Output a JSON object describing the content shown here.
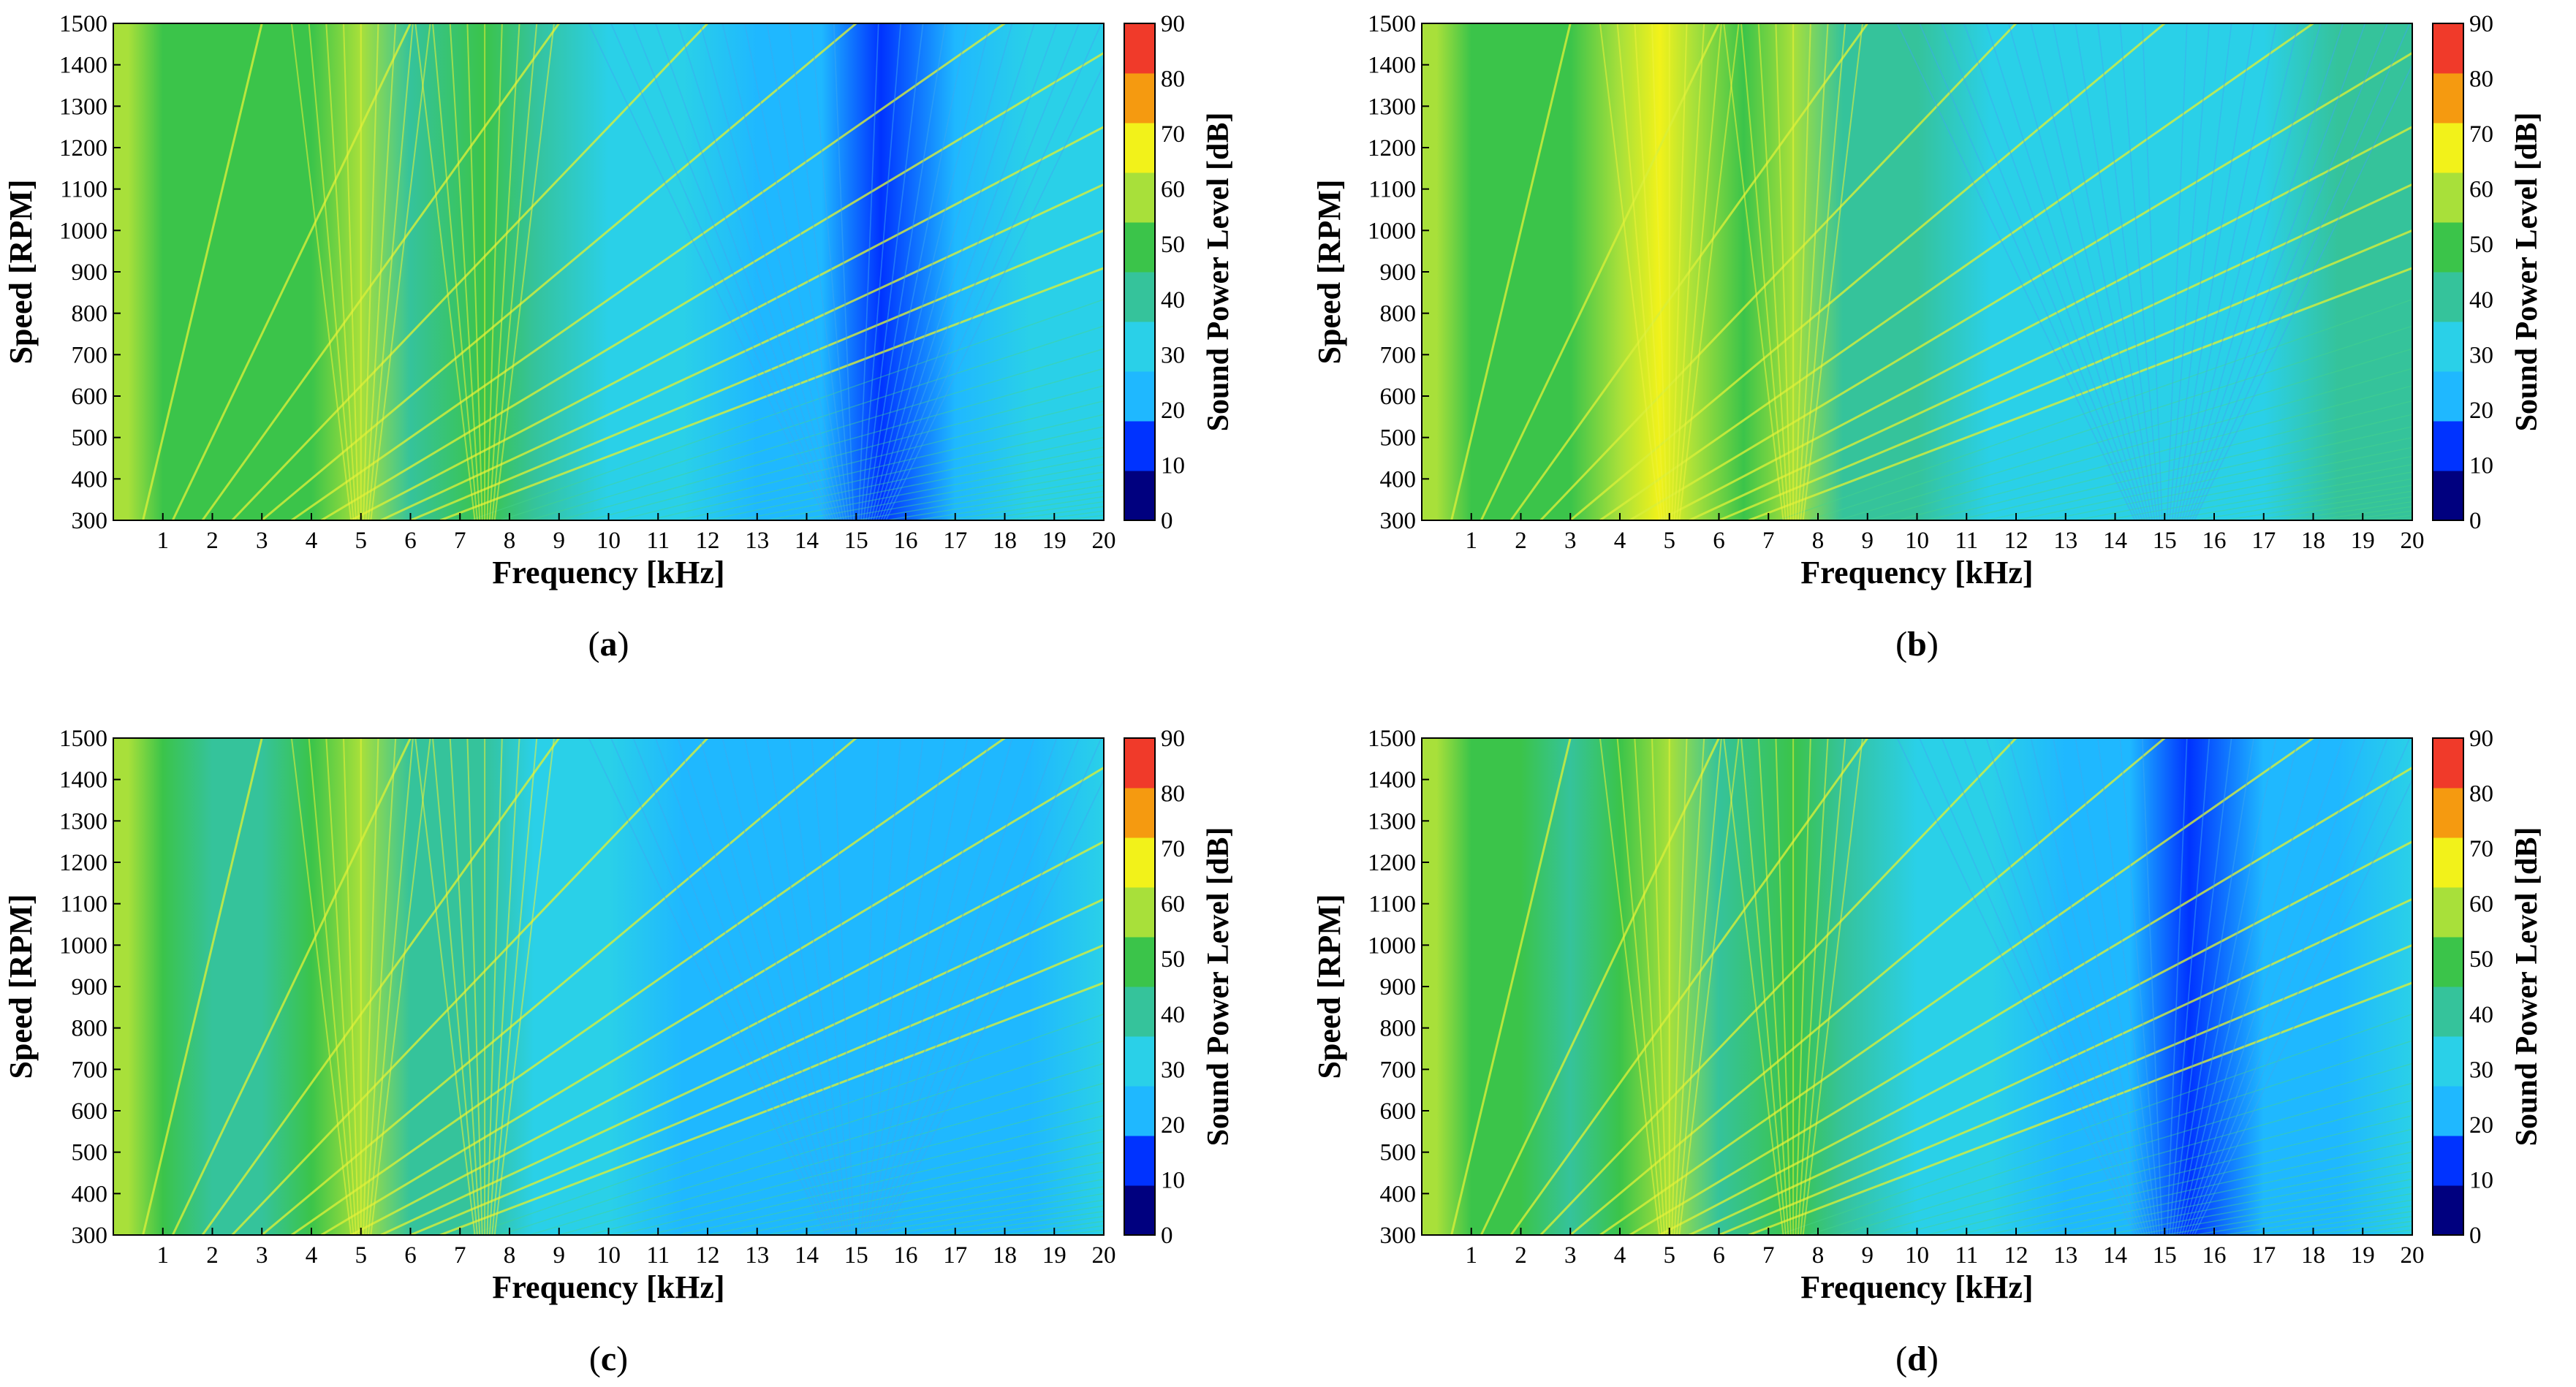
{
  "chart_data": [
    {
      "type": "heatmap",
      "panel_label_prefix": "(",
      "panel_letter": "a",
      "panel_label_suffix": ")",
      "xlabel": "Frequency [kHz]",
      "ylabel": "Speed [RPM]",
      "colorbar_label": "Sound Power Level [dB]",
      "xlim": [
        0,
        20
      ],
      "ylim": [
        300,
        1500
      ],
      "zlim": [
        0,
        90
      ],
      "x_ticks": [
        1,
        2,
        3,
        4,
        5,
        6,
        7,
        8,
        9,
        10,
        11,
        12,
        13,
        14,
        15,
        16,
        17,
        18,
        19,
        20
      ],
      "y_ticks": [
        300,
        400,
        500,
        600,
        700,
        800,
        900,
        1000,
        1100,
        1200,
        1300,
        1400,
        1500
      ],
      "colorbar_ticks": [
        0,
        10,
        20,
        30,
        40,
        50,
        60,
        70,
        80,
        90
      ],
      "band_profile_db": [
        {
          "freq_khz": 0.3,
          "level_db": 60
        },
        {
          "freq_khz": 1.0,
          "level_db": 50
        },
        {
          "freq_khz": 2.0,
          "level_db": 47
        },
        {
          "freq_khz": 3.0,
          "level_db": 45
        },
        {
          "freq_khz": 4.0,
          "level_db": 50
        },
        {
          "freq_khz": 5.0,
          "level_db": 60
        },
        {
          "freq_khz": 6.0,
          "level_db": 42
        },
        {
          "freq_khz": 7.5,
          "level_db": 48
        },
        {
          "freq_khz": 8.5,
          "level_db": 36
        },
        {
          "freq_khz": 10.0,
          "level_db": 32
        },
        {
          "freq_khz": 11.5,
          "level_db": 30
        },
        {
          "freq_khz": 13.0,
          "level_db": 22
        },
        {
          "freq_khz": 14.3,
          "level_db": 18
        },
        {
          "freq_khz": 15.5,
          "level_db": 12
        },
        {
          "freq_khz": 17.0,
          "level_db": 20
        },
        {
          "freq_khz": 18.5,
          "level_db": 30
        },
        {
          "freq_khz": 20.0,
          "level_db": 32
        }
      ]
    },
    {
      "type": "heatmap",
      "panel_label_prefix": "(",
      "panel_letter": "b",
      "panel_label_suffix": ")",
      "xlabel": "Frequency [kHz]",
      "ylabel": "Speed [RPM]",
      "colorbar_label": "Sound Power Level [dB]",
      "xlim": [
        0,
        20
      ],
      "ylim": [
        300,
        1500
      ],
      "zlim": [
        0,
        90
      ],
      "x_ticks": [
        1,
        2,
        3,
        4,
        5,
        6,
        7,
        8,
        9,
        10,
        11,
        12,
        13,
        14,
        15,
        16,
        17,
        18,
        19,
        20
      ],
      "y_ticks": [
        300,
        400,
        500,
        600,
        700,
        800,
        900,
        1000,
        1100,
        1200,
        1300,
        1400,
        1500
      ],
      "colorbar_ticks": [
        0,
        10,
        20,
        30,
        40,
        50,
        60,
        70,
        80,
        90
      ],
      "band_profile_db": [
        {
          "freq_khz": 0.3,
          "level_db": 62
        },
        {
          "freq_khz": 1.0,
          "level_db": 52
        },
        {
          "freq_khz": 2.0,
          "level_db": 48
        },
        {
          "freq_khz": 3.0,
          "level_db": 47
        },
        {
          "freq_khz": 4.0,
          "level_db": 58
        },
        {
          "freq_khz": 4.8,
          "level_db": 68
        },
        {
          "freq_khz": 5.5,
          "level_db": 60
        },
        {
          "freq_khz": 6.5,
          "level_db": 48
        },
        {
          "freq_khz": 7.5,
          "level_db": 58
        },
        {
          "freq_khz": 8.5,
          "level_db": 44
        },
        {
          "freq_khz": 10.0,
          "level_db": 38
        },
        {
          "freq_khz": 11.5,
          "level_db": 34
        },
        {
          "freq_khz": 13.0,
          "level_db": 30
        },
        {
          "freq_khz": 15.0,
          "level_db": 27
        },
        {
          "freq_khz": 17.0,
          "level_db": 32
        },
        {
          "freq_khz": 18.5,
          "level_db": 38
        },
        {
          "freq_khz": 20.0,
          "level_db": 36
        }
      ]
    },
    {
      "type": "heatmap",
      "panel_label_prefix": "(",
      "panel_letter": "c",
      "panel_label_suffix": ")",
      "xlabel": "Frequency [kHz]",
      "ylabel": "Speed [RPM]",
      "colorbar_label": "Sound Power Level [dB]",
      "xlim": [
        0,
        20
      ],
      "ylim": [
        300,
        1500
      ],
      "zlim": [
        0,
        90
      ],
      "x_ticks": [
        1,
        2,
        3,
        4,
        5,
        6,
        7,
        8,
        9,
        10,
        11,
        12,
        13,
        14,
        15,
        16,
        17,
        18,
        19,
        20
      ],
      "y_ticks": [
        300,
        400,
        500,
        600,
        700,
        800,
        900,
        1000,
        1100,
        1200,
        1300,
        1400,
        1500
      ],
      "colorbar_ticks": [
        0,
        10,
        20,
        30,
        40,
        50,
        60,
        70,
        80,
        90
      ],
      "band_profile_db": [
        {
          "freq_khz": 0.3,
          "level_db": 58
        },
        {
          "freq_khz": 1.0,
          "level_db": 46
        },
        {
          "freq_khz": 2.0,
          "level_db": 42
        },
        {
          "freq_khz": 3.0,
          "level_db": 40
        },
        {
          "freq_khz": 4.0,
          "level_db": 45
        },
        {
          "freq_khz": 5.0,
          "level_db": 55
        },
        {
          "freq_khz": 6.0,
          "level_db": 38
        },
        {
          "freq_khz": 7.5,
          "level_db": 40
        },
        {
          "freq_khz": 8.5,
          "level_db": 30
        },
        {
          "freq_khz": 10.0,
          "level_db": 27
        },
        {
          "freq_khz": 11.5,
          "level_db": 25
        },
        {
          "freq_khz": 13.0,
          "level_db": 24
        },
        {
          "freq_khz": 15.0,
          "level_db": 26
        },
        {
          "freq_khz": 17.0,
          "level_db": 24
        },
        {
          "freq_khz": 18.5,
          "level_db": 26
        },
        {
          "freq_khz": 20.0,
          "level_db": 27
        }
      ]
    },
    {
      "type": "heatmap",
      "panel_label_prefix": "(",
      "panel_letter": "d",
      "panel_label_suffix": ")",
      "xlabel": "Frequency [kHz]",
      "ylabel": "Speed [RPM]",
      "colorbar_label": "Sound Power Level [dB]",
      "xlim": [
        0,
        20
      ],
      "ylim": [
        300,
        1500
      ],
      "zlim": [
        0,
        90
      ],
      "x_ticks": [
        1,
        2,
        3,
        4,
        5,
        6,
        7,
        8,
        9,
        10,
        11,
        12,
        13,
        14,
        15,
        16,
        17,
        18,
        19,
        20
      ],
      "y_ticks": [
        300,
        400,
        500,
        600,
        700,
        800,
        900,
        1000,
        1100,
        1200,
        1300,
        1400,
        1500
      ],
      "colorbar_ticks": [
        0,
        10,
        20,
        30,
        40,
        50,
        60,
        70,
        80,
        90
      ],
      "band_profile_db": [
        {
          "freq_khz": 0.3,
          "level_db": 60
        },
        {
          "freq_khz": 1.0,
          "level_db": 50
        },
        {
          "freq_khz": 2.0,
          "level_db": 46
        },
        {
          "freq_khz": 3.0,
          "level_db": 44
        },
        {
          "freq_khz": 4.0,
          "level_db": 48
        },
        {
          "freq_khz": 5.0,
          "level_db": 57
        },
        {
          "freq_khz": 6.0,
          "level_db": 42
        },
        {
          "freq_khz": 7.5,
          "level_db": 50
        },
        {
          "freq_khz": 8.5,
          "level_db": 36
        },
        {
          "freq_khz": 10.0,
          "level_db": 32
        },
        {
          "freq_khz": 11.5,
          "level_db": 28
        },
        {
          "freq_khz": 13.0,
          "level_db": 22
        },
        {
          "freq_khz": 14.3,
          "level_db": 18
        },
        {
          "freq_khz": 15.5,
          "level_db": 12
        },
        {
          "freq_khz": 17.0,
          "level_db": 18
        },
        {
          "freq_khz": 18.5,
          "level_db": 26
        },
        {
          "freq_khz": 20.0,
          "level_db": 30
        }
      ]
    }
  ],
  "colormap": [
    "#00007f",
    "#0033ff",
    "#1fb8ff",
    "#2ad0e8",
    "#35c39b",
    "#3bc44a",
    "#a8e03a",
    "#f2f21a",
    "#f59a10",
    "#f03a2a"
  ]
}
